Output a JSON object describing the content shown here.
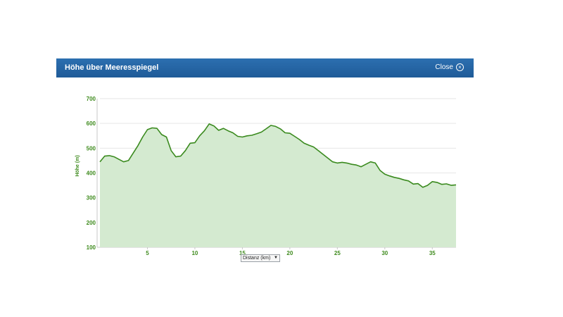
{
  "dialog": {
    "title": "Höhe über Meeresspiegel",
    "close_label": "Close"
  },
  "x_axis_select": {
    "selected": "Distanz (km)"
  },
  "colors": {
    "header": "#2a6aab",
    "line": "#3a8a1e",
    "fill": "#d4ead0",
    "tick_text": "#3f8b1e"
  },
  "chart_data": {
    "type": "area",
    "ylabel": "Höhe (m)",
    "xlabel": "Distanz (km)",
    "ylim": [
      100,
      700
    ],
    "xlim": [
      0,
      37.5
    ],
    "yticks": [
      100,
      200,
      300,
      400,
      500,
      600,
      700
    ],
    "xticks": [
      5,
      10,
      15,
      20,
      25,
      30,
      35
    ],
    "grid": true,
    "series": [
      {
        "x": [
          0,
          0.5,
          1,
          1.5,
          2,
          2.5,
          3,
          3.5,
          4,
          4.5,
          5,
          5.5,
          6,
          6.5,
          7,
          7.5,
          8,
          8.5,
          9,
          9.5,
          10,
          10.5,
          11,
          11.5,
          12,
          12.5,
          13,
          13.5,
          14,
          14.5,
          15,
          15.5,
          16,
          16.5,
          17,
          17.5,
          18,
          18.5,
          19,
          19.5,
          20,
          20.5,
          21,
          21.5,
          22,
          22.5,
          23,
          23.5,
          24,
          24.5,
          25,
          25.5,
          26,
          26.5,
          27,
          27.5,
          28,
          28.5,
          29,
          29.5,
          30,
          30.5,
          31,
          31.5,
          32,
          32.5,
          33,
          33.5,
          34,
          34.5,
          35,
          35.5,
          36,
          36.5,
          37,
          37.5
        ],
        "values": [
          445,
          468,
          470,
          465,
          455,
          445,
          450,
          480,
          510,
          545,
          575,
          582,
          580,
          555,
          545,
          490,
          465,
          468,
          490,
          520,
          522,
          550,
          570,
          598,
          590,
          572,
          580,
          570,
          562,
          548,
          545,
          550,
          552,
          558,
          565,
          578,
          592,
          588,
          578,
          562,
          560,
          548,
          535,
          520,
          512,
          505,
          490,
          475,
          460,
          445,
          440,
          443,
          440,
          435,
          432,
          425,
          435,
          445,
          440,
          410,
          395,
          388,
          382,
          378,
          372,
          368,
          355,
          357,
          342,
          350,
          365,
          362,
          354,
          356,
          350,
          352
        ]
      }
    ]
  }
}
